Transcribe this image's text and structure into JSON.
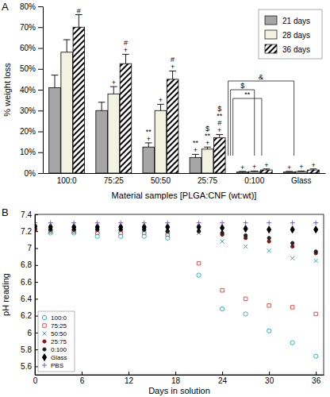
{
  "chart_data": [
    {
      "type": "bar",
      "panel_label": "A",
      "x_label": "Material samples [PLGA:CNF (wt:wt)]",
      "y_label": "% weight loss",
      "categories": [
        "100:0",
        "75:25",
        "50:50",
        "25:75",
        "0:100",
        "Glass"
      ],
      "series": [
        {
          "name": "21 days",
          "color": "#a6a6a6",
          "marker": "solid",
          "values": [
            41,
            30,
            12.5,
            7.5,
            0.5,
            0.5
          ],
          "errors": [
            6,
            4,
            2,
            1.5,
            0.3,
            0.3
          ]
        },
        {
          "name": "28 days",
          "color": "#f2f2e0",
          "marker": "solid",
          "values": [
            58,
            38,
            30,
            11.5,
            0.7,
            0.7
          ],
          "errors": [
            6,
            3.5,
            3,
            1,
            0.3,
            0.3
          ]
        },
        {
          "name": "36 days",
          "color": "#000000",
          "marker": "hatch",
          "values": [
            70,
            52.5,
            45,
            17,
            1.5,
            1.5
          ],
          "errors": [
            6,
            4.5,
            4,
            1.5,
            0.5,
            0.5
          ]
        }
      ],
      "ylim": [
        0,
        80
      ],
      "yticks": [
        {
          "value": 0,
          "label": "0%"
        },
        {
          "value": 10,
          "label": "10%"
        },
        {
          "value": 20,
          "label": "20%"
        },
        {
          "value": 30,
          "label": "30%"
        },
        {
          "value": 40,
          "label": "40%"
        },
        {
          "value": 50,
          "label": "50%"
        },
        {
          "value": 60,
          "label": "60%"
        },
        {
          "value": 70,
          "label": "70%"
        },
        {
          "value": 80,
          "label": "80%"
        }
      ],
      "grid": false,
      "legend": "top-right",
      "annotations": [
        {
          "category": "100:0",
          "series": "36 days",
          "labels": [
            "#"
          ]
        },
        {
          "category": "75:25",
          "series": "28 days",
          "labels": [
            "+"
          ]
        },
        {
          "category": "75:25",
          "series": "36 days",
          "labels": [
            "#",
            "+"
          ]
        },
        {
          "category": "50:50",
          "series": "21 days",
          "labels": [
            "**",
            "+"
          ]
        },
        {
          "category": "50:50",
          "series": "28 days",
          "labels": [
            "+"
          ]
        },
        {
          "category": "50:50",
          "series": "36 days",
          "labels": [
            "#",
            "+"
          ]
        },
        {
          "category": "25:75",
          "series": "21 days",
          "labels": [
            "**",
            "+"
          ]
        },
        {
          "category": "25:75",
          "series": "28 days",
          "labels": [
            "$",
            "**",
            "+"
          ]
        },
        {
          "category": "25:75",
          "series": "36 days",
          "labels": [
            "$",
            "**",
            "#",
            "+"
          ]
        },
        {
          "category": "0:100",
          "series": "21 days",
          "labels": [
            "+"
          ]
        },
        {
          "category": "0:100",
          "series": "28 days",
          "labels": [
            "+"
          ]
        },
        {
          "category": "0:100",
          "series": "36 days",
          "labels": [
            "+"
          ]
        },
        {
          "category": "Glass",
          "series": "21 days",
          "labels": [
            "+"
          ]
        },
        {
          "category": "Glass",
          "series": "28 days",
          "labels": [
            "+"
          ]
        },
        {
          "category": "Glass",
          "series": "36 days",
          "labels": [
            "+"
          ]
        }
      ],
      "brackets": [
        {
          "label": "&",
          "from": "25:75",
          "to": "Glass"
        },
        {
          "label": "$",
          "from": "25:75",
          "to": "0:100"
        },
        {
          "label": "**",
          "from": "25:75",
          "to": "0:100"
        }
      ]
    },
    {
      "type": "scatter",
      "panel_label": "B",
      "x_label": "Days in solution",
      "y_label": "pH reading",
      "x": [
        0,
        2,
        5,
        8,
        11,
        14,
        17,
        21,
        24,
        27,
        30,
        33,
        36
      ],
      "series": [
        {
          "name": "100:0",
          "color": "#2bb5c5",
          "marker": "circle",
          "values": [
            7.22,
            7.18,
            7.18,
            7.14,
            7.14,
            7.14,
            7.12,
            6.68,
            6.28,
            6.22,
            6.02,
            5.88,
            5.72
          ]
        },
        {
          "name": "75:25",
          "color": "#e8504f",
          "marker": "square",
          "values": [
            7.22,
            7.2,
            7.2,
            7.18,
            7.18,
            7.18,
            7.16,
            6.82,
            6.5,
            6.4,
            6.32,
            6.3,
            6.22
          ]
        },
        {
          "name": "50:50",
          "color": "#3aa8b0",
          "marker": "x",
          "values": [
            7.22,
            7.2,
            7.2,
            7.2,
            7.2,
            7.2,
            7.18,
            7.18,
            7.08,
            7.02,
            6.97,
            6.88,
            6.85
          ]
        },
        {
          "name": "25:75",
          "color": "#8b1010",
          "marker": "point",
          "values": [
            7.22,
            7.22,
            7.22,
            7.22,
            7.22,
            7.22,
            7.2,
            7.2,
            7.16,
            7.12,
            7.08,
            7.02,
            6.94
          ]
        },
        {
          "name": "0:100",
          "color": "#202020",
          "marker": "point",
          "values": [
            7.24,
            7.22,
            7.22,
            7.22,
            7.22,
            7.22,
            7.2,
            7.2,
            7.18,
            7.15,
            7.12,
            7.06,
            6.96
          ]
        },
        {
          "name": "Glass",
          "color": "#000000",
          "marker": "diamond",
          "values": [
            7.26,
            7.25,
            7.25,
            7.25,
            7.25,
            7.25,
            7.25,
            7.25,
            7.24,
            7.23,
            7.22,
            7.22,
            7.22
          ]
        },
        {
          "name": "PBS",
          "color": "#7f5fbf",
          "marker": "plus",
          "values": [
            7.3,
            7.3,
            7.3,
            7.3,
            7.3,
            7.3,
            7.3,
            7.3,
            7.3,
            7.3,
            7.3,
            7.3,
            7.3
          ]
        }
      ],
      "xlim": [
        0,
        37
      ],
      "xticks": [
        0,
        6,
        12,
        18,
        24,
        30,
        36
      ],
      "ylim": [
        5.5,
        7.4
      ],
      "yticks": [
        5.6,
        5.8,
        6,
        6.2,
        6.4,
        6.6,
        6.8,
        7,
        7.2,
        7.4
      ],
      "grid": false,
      "legend": "bottom-left"
    }
  ]
}
